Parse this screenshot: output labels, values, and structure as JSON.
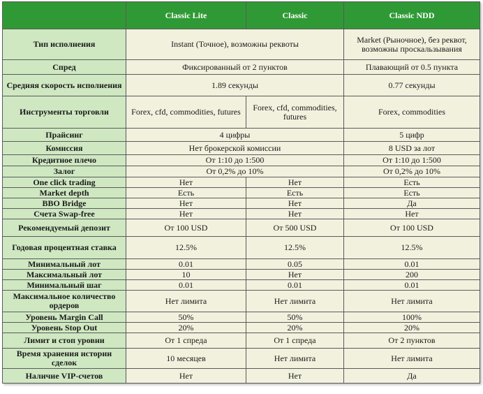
{
  "header": {
    "col1": "Classic Lite",
    "col2": "Classic",
    "col3": "Classic NDD"
  },
  "rows": {
    "execution": {
      "label": "Тип исполнения",
      "lite_classic": "Instant (Точное), возможны реквоты",
      "ndd": "Market (Рыночное), без реквот, возможны проскальзывания"
    },
    "spread": {
      "label": "Спред",
      "lite_classic": "Фиксированный от 2 пунктов",
      "ndd": "Плавающий от 0.5 пункта"
    },
    "speed": {
      "label": "Средняя скорость исполнения",
      "lite_classic": "1.89 секунды",
      "ndd": "0.77 секунды"
    },
    "instruments": {
      "label": "Инструменты торговли",
      "lite": "Forex, cfd, commodities, futures",
      "classic": "Forex, cfd, commodities, futures",
      "ndd": "Forex, commodities"
    },
    "pricing": {
      "label": "Прайсинг",
      "lite_classic": "4 цифры",
      "ndd": "5 цифр"
    },
    "commission": {
      "label": "Комиссия",
      "lite_classic": "Нет брокерской комиссии",
      "ndd": "8 USD за лот"
    },
    "leverage": {
      "label": "Кредитное плечо",
      "lite_classic": "От 1:10 до 1:500",
      "ndd": "От 1:10 до 1:500"
    },
    "collateral": {
      "label": "Залог",
      "lite_classic": "От 0,2% до 10%",
      "ndd": "От 0,2% до 10%"
    },
    "oneclick": {
      "label": "One click trading",
      "lite": "Нет",
      "classic": "Нет",
      "ndd": "Есть"
    },
    "depth": {
      "label": "Market depth",
      "lite": "Есть",
      "classic": "Есть",
      "ndd": "Есть"
    },
    "bbo": {
      "label": "BBO Bridge",
      "lite": "Нет",
      "classic": "Нет",
      "ndd": "Да"
    },
    "swapfree": {
      "label": "Счета Swap-free",
      "lite": "Нет",
      "classic": "Нет",
      "ndd": "Нет"
    },
    "deposit": {
      "label": "Рекомендуемый депозит",
      "lite": "От 100 USD",
      "classic": "От 500 USD",
      "ndd": "От 100 USD"
    },
    "interest": {
      "label": "Годовая процентная ставка",
      "lite": "12.5%",
      "classic": "12.5%",
      "ndd": "12.5%"
    },
    "minlot": {
      "label": "Минимальный лот",
      "lite": "0.01",
      "classic": "0.05",
      "ndd": "0.01"
    },
    "maxlot": {
      "label": "Максимальный лот",
      "lite": "10",
      "classic": "Нет",
      "ndd": "200"
    },
    "minstep": {
      "label": "Минимальный шаг",
      "lite": "0.01",
      "classic": "0.01",
      "ndd": "0.01"
    },
    "maxorders": {
      "label": "Максимальное количество ордеров",
      "lite": "Нет лимита",
      "classic": "Нет лимита",
      "ndd": "Нет лимита"
    },
    "margincall": {
      "label": "Уровень Margin Call",
      "lite": "50%",
      "classic": "50%",
      "ndd": "100%"
    },
    "stopout": {
      "label": "Уровень Stop Out",
      "lite": "20%",
      "classic": "20%",
      "ndd": "20%"
    },
    "limits": {
      "label": "Лимит и стоп уровни",
      "lite": "От 1 спреда",
      "classic": "От 1 спреда",
      "ndd": "От 2 пунктов"
    },
    "history": {
      "label": "Время хранения истории сделок",
      "lite": "10 месяцев",
      "classic": "Нет лимита",
      "ndd": "Нет лимита"
    },
    "vip": {
      "label": "Наличие VIP-счетов",
      "lite": "Нет",
      "classic": "Нет",
      "ndd": "Да"
    }
  }
}
